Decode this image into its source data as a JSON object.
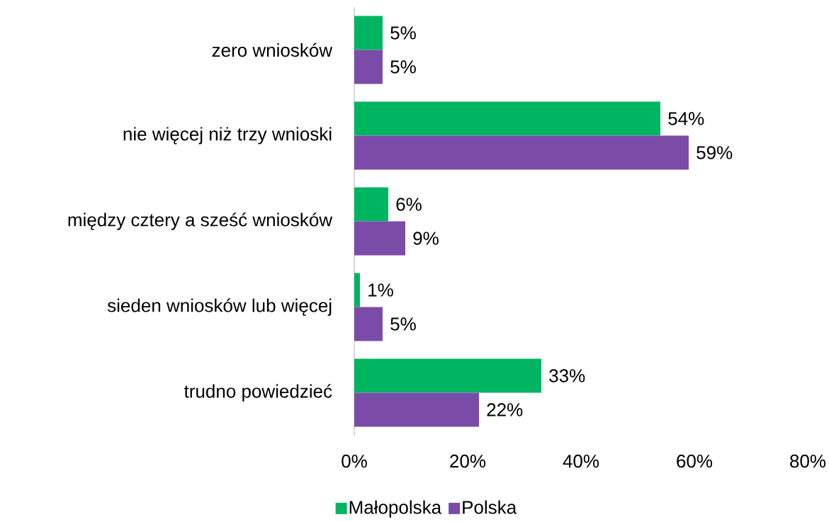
{
  "chart_data": {
    "type": "bar",
    "orientation": "horizontal",
    "categories": [
      "zero wniosków",
      "nie więcej niż trzy wnioski",
      "między cztery a sześć wniosków",
      "sieden wniosków lub więcej",
      "trudno powiedzieć"
    ],
    "series": [
      {
        "name": "Małopolska",
        "color": "#00b561",
        "values": [
          5,
          54,
          6,
          1,
          33
        ],
        "value_labels": [
          "5%",
          "54%",
          "6%",
          "1%",
          "33%"
        ]
      },
      {
        "name": "Polska",
        "color": "#7b4ba8",
        "values": [
          5,
          59,
          9,
          5,
          22
        ],
        "value_labels": [
          "5%",
          "59%",
          "9%",
          "5%",
          "22%"
        ]
      }
    ],
    "xlim": [
      0,
      80
    ],
    "xticks": [
      {
        "value": 0,
        "label": "0%"
      },
      {
        "value": 20,
        "label": "20%"
      },
      {
        "value": 40,
        "label": "40%"
      },
      {
        "value": 60,
        "label": "60%"
      },
      {
        "value": 80,
        "label": "80%"
      }
    ],
    "grid": false,
    "legend": "bottom"
  }
}
